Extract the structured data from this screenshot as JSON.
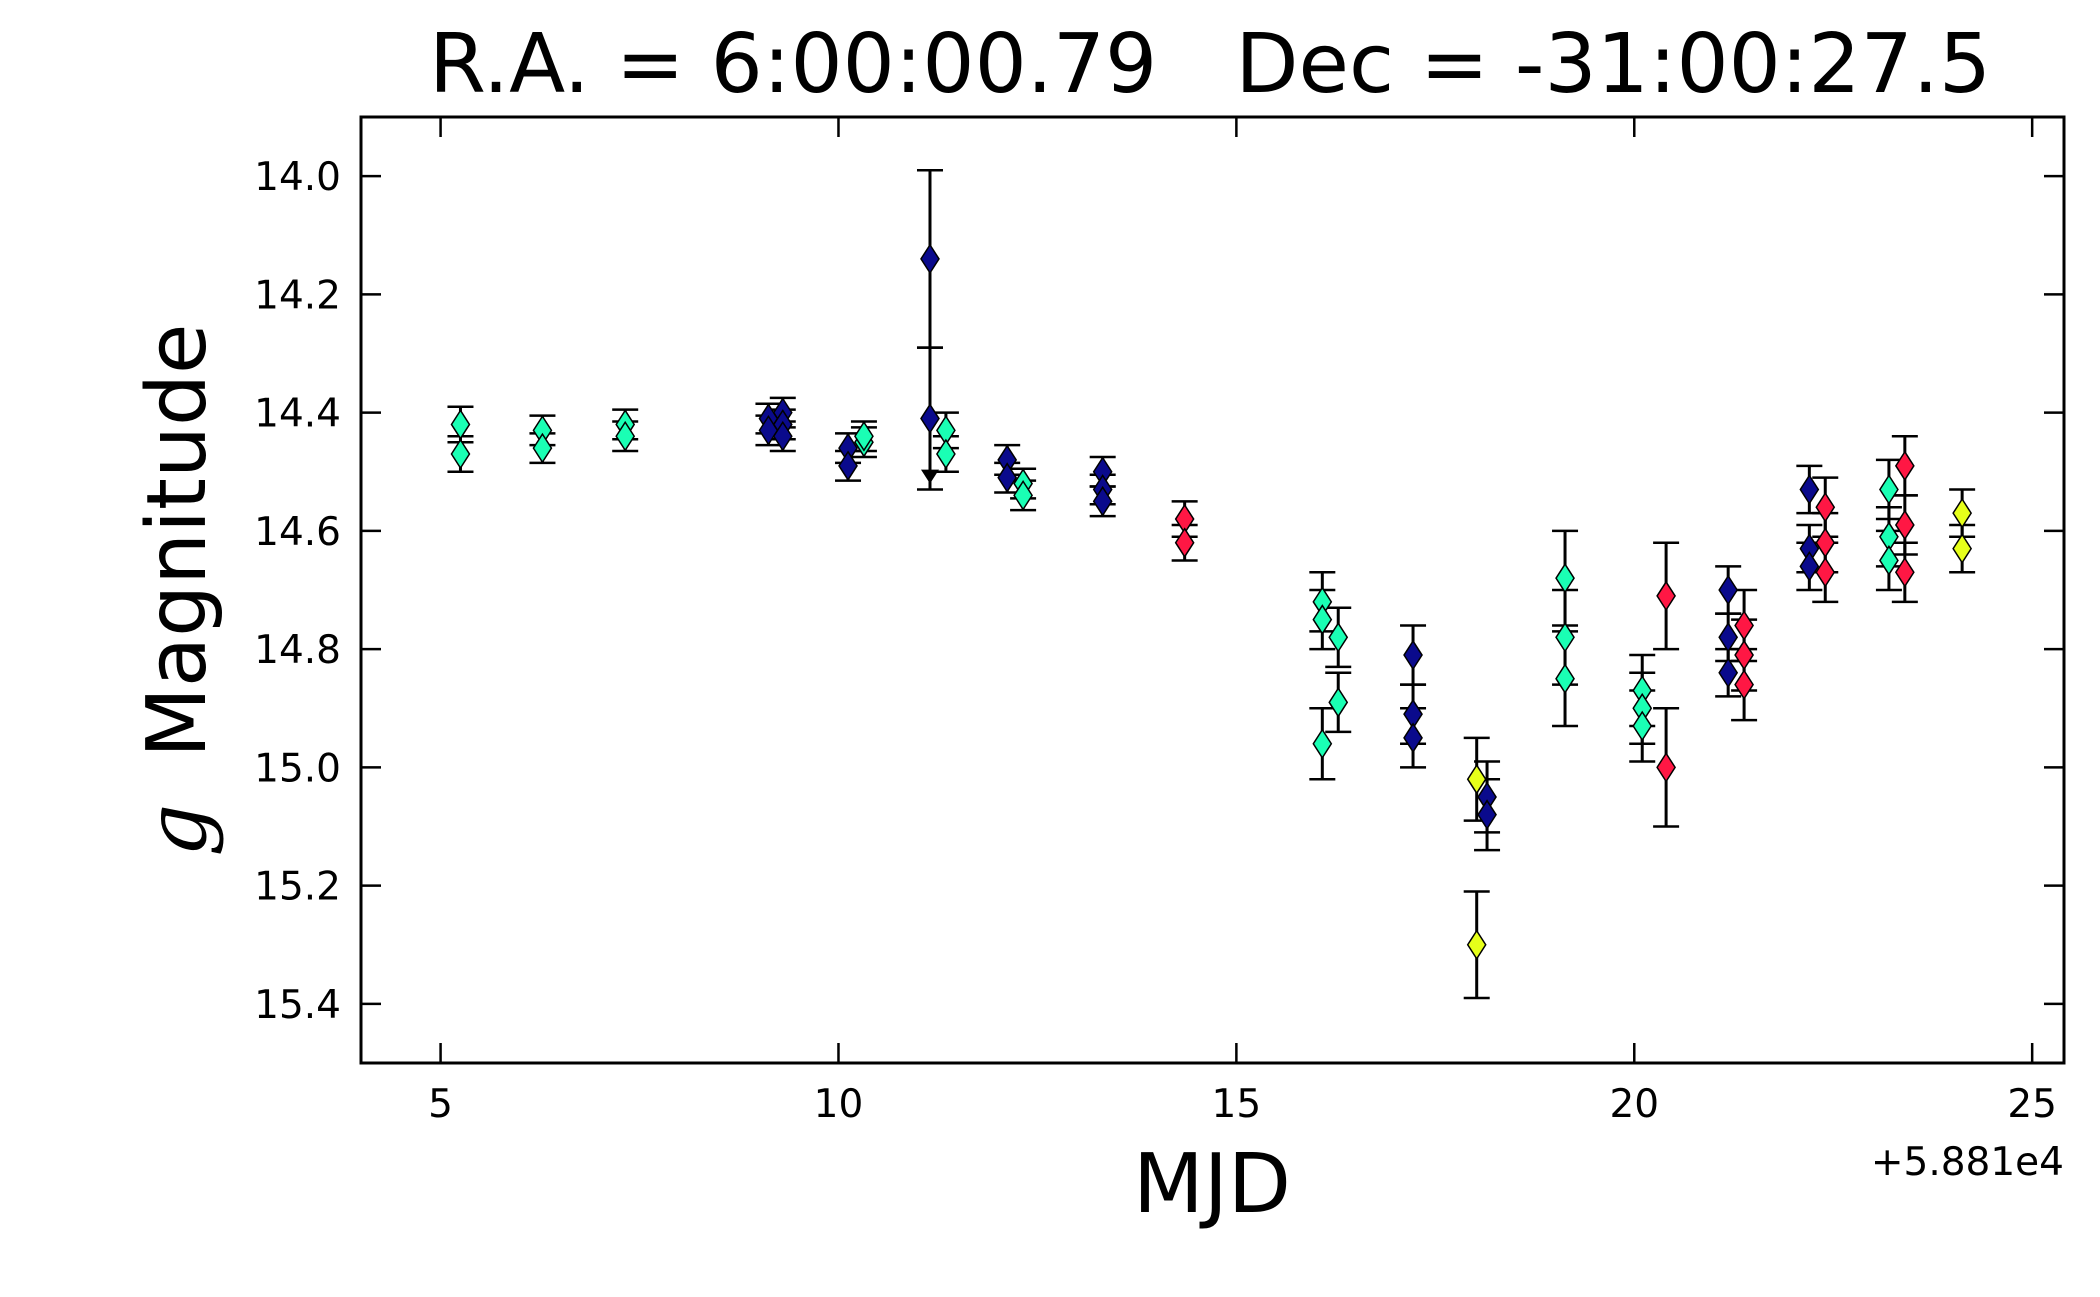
{
  "chart_data": {
    "type": "scatter",
    "title": "R.A. = 6:00:00.79   Dec = -31:00:27.5",
    "xlabel": "MJD",
    "ylabel_symbol": "g",
    "ylabel_text": "Magnitude",
    "x_offset_label": "+5.881e4",
    "xlim": [
      4.0,
      25.4
    ],
    "ylim": [
      15.5,
      13.9
    ],
    "y_inverted": true,
    "grid": false,
    "x_ticks": [
      5,
      10,
      15,
      20,
      25
    ],
    "y_ticks": [
      14.0,
      14.2,
      14.4,
      14.6,
      14.8,
      15.0,
      15.2,
      15.4
    ],
    "colors": {
      "cyan": "#1affb4",
      "navy": "#0a0a8c",
      "red": "#ff1744",
      "yellow": "#e6ff1a",
      "edge": "#000000"
    },
    "points": [
      {
        "x": 5.25,
        "y": 14.42,
        "err": 0.03,
        "color": "cyan"
      },
      {
        "x": 5.25,
        "y": 14.47,
        "err": 0.03,
        "color": "cyan"
      },
      {
        "x": 6.28,
        "y": 14.43,
        "err": 0.025,
        "color": "cyan"
      },
      {
        "x": 6.28,
        "y": 14.46,
        "err": 0.025,
        "color": "cyan"
      },
      {
        "x": 7.32,
        "y": 14.42,
        "err": 0.025,
        "color": "cyan"
      },
      {
        "x": 7.32,
        "y": 14.44,
        "err": 0.025,
        "color": "cyan"
      },
      {
        "x": 9.12,
        "y": 14.41,
        "err": 0.025,
        "color": "navy"
      },
      {
        "x": 9.12,
        "y": 14.43,
        "err": 0.025,
        "color": "navy"
      },
      {
        "x": 9.3,
        "y": 14.4,
        "err": 0.025,
        "color": "navy"
      },
      {
        "x": 9.3,
        "y": 14.42,
        "err": 0.025,
        "color": "navy"
      },
      {
        "x": 9.3,
        "y": 14.44,
        "err": 0.025,
        "color": "navy"
      },
      {
        "x": 10.12,
        "y": 14.46,
        "err": 0.025,
        "color": "navy"
      },
      {
        "x": 10.12,
        "y": 14.49,
        "err": 0.025,
        "color": "navy"
      },
      {
        "x": 10.32,
        "y": 14.45,
        "err": 0.025,
        "color": "cyan"
      },
      {
        "x": 10.32,
        "y": 14.44,
        "err": 0.025,
        "color": "cyan"
      },
      {
        "x": 11.15,
        "y": 14.14,
        "err": 0.15,
        "color": "navy"
      },
      {
        "x": 11.15,
        "y": 14.41,
        "err": 0.12,
        "color": "navy"
      },
      {
        "x": 11.35,
        "y": 14.43,
        "err": 0.03,
        "color": "cyan"
      },
      {
        "x": 11.35,
        "y": 14.47,
        "err": 0.03,
        "color": "cyan"
      },
      {
        "x": 12.12,
        "y": 14.48,
        "err": 0.025,
        "color": "navy"
      },
      {
        "x": 12.12,
        "y": 14.51,
        "err": 0.025,
        "color": "navy"
      },
      {
        "x": 12.32,
        "y": 14.52,
        "err": 0.025,
        "color": "cyan"
      },
      {
        "x": 12.32,
        "y": 14.54,
        "err": 0.025,
        "color": "cyan"
      },
      {
        "x": 13.32,
        "y": 14.5,
        "err": 0.025,
        "color": "navy"
      },
      {
        "x": 13.32,
        "y": 14.53,
        "err": 0.025,
        "color": "navy"
      },
      {
        "x": 13.32,
        "y": 14.55,
        "err": 0.025,
        "color": "navy"
      },
      {
        "x": 14.35,
        "y": 14.58,
        "err": 0.03,
        "color": "red"
      },
      {
        "x": 14.35,
        "y": 14.62,
        "err": 0.03,
        "color": "red"
      },
      {
        "x": 16.08,
        "y": 14.72,
        "err": 0.05,
        "color": "cyan"
      },
      {
        "x": 16.08,
        "y": 14.75,
        "err": 0.05,
        "color": "cyan"
      },
      {
        "x": 16.08,
        "y": 14.96,
        "err": 0.06,
        "color": "cyan"
      },
      {
        "x": 16.28,
        "y": 14.78,
        "err": 0.05,
        "color": "cyan"
      },
      {
        "x": 16.28,
        "y": 14.89,
        "err": 0.05,
        "color": "cyan"
      },
      {
        "x": 17.22,
        "y": 14.81,
        "err": 0.05,
        "color": "navy"
      },
      {
        "x": 17.22,
        "y": 14.91,
        "err": 0.05,
        "color": "navy"
      },
      {
        "x": 17.22,
        "y": 14.95,
        "err": 0.05,
        "color": "navy"
      },
      {
        "x": 18.02,
        "y": 15.02,
        "err": 0.07,
        "color": "yellow"
      },
      {
        "x": 18.02,
        "y": 15.3,
        "err": 0.09,
        "color": "yellow"
      },
      {
        "x": 18.15,
        "y": 15.05,
        "err": 0.06,
        "color": "navy"
      },
      {
        "x": 18.15,
        "y": 15.08,
        "err": 0.06,
        "color": "navy"
      },
      {
        "x": 19.13,
        "y": 14.68,
        "err": 0.08,
        "color": "cyan"
      },
      {
        "x": 19.13,
        "y": 14.78,
        "err": 0.08,
        "color": "cyan"
      },
      {
        "x": 19.13,
        "y": 14.85,
        "err": 0.08,
        "color": "cyan"
      },
      {
        "x": 20.1,
        "y": 14.87,
        "err": 0.06,
        "color": "cyan"
      },
      {
        "x": 20.1,
        "y": 14.9,
        "err": 0.06,
        "color": "cyan"
      },
      {
        "x": 20.1,
        "y": 14.93,
        "err": 0.06,
        "color": "cyan"
      },
      {
        "x": 20.4,
        "y": 14.71,
        "err": 0.09,
        "color": "red"
      },
      {
        "x": 20.4,
        "y": 15.0,
        "err": 0.1,
        "color": "red"
      },
      {
        "x": 21.18,
        "y": 14.7,
        "err": 0.04,
        "color": "navy"
      },
      {
        "x": 21.18,
        "y": 14.78,
        "err": 0.04,
        "color": "navy"
      },
      {
        "x": 21.18,
        "y": 14.84,
        "err": 0.04,
        "color": "navy"
      },
      {
        "x": 21.38,
        "y": 14.76,
        "err": 0.06,
        "color": "red"
      },
      {
        "x": 21.38,
        "y": 14.81,
        "err": 0.06,
        "color": "red"
      },
      {
        "x": 21.38,
        "y": 14.86,
        "err": 0.06,
        "color": "red"
      },
      {
        "x": 22.2,
        "y": 14.53,
        "err": 0.04,
        "color": "navy"
      },
      {
        "x": 22.2,
        "y": 14.63,
        "err": 0.04,
        "color": "navy"
      },
      {
        "x": 22.2,
        "y": 14.66,
        "err": 0.04,
        "color": "navy"
      },
      {
        "x": 22.4,
        "y": 14.56,
        "err": 0.05,
        "color": "red"
      },
      {
        "x": 22.4,
        "y": 14.62,
        "err": 0.05,
        "color": "red"
      },
      {
        "x": 22.4,
        "y": 14.67,
        "err": 0.05,
        "color": "red"
      },
      {
        "x": 23.2,
        "y": 14.53,
        "err": 0.05,
        "color": "cyan"
      },
      {
        "x": 23.2,
        "y": 14.61,
        "err": 0.05,
        "color": "cyan"
      },
      {
        "x": 23.2,
        "y": 14.65,
        "err": 0.05,
        "color": "cyan"
      },
      {
        "x": 23.4,
        "y": 14.49,
        "err": 0.05,
        "color": "red"
      },
      {
        "x": 23.4,
        "y": 14.59,
        "err": 0.05,
        "color": "red"
      },
      {
        "x": 23.4,
        "y": 14.67,
        "err": 0.05,
        "color": "red"
      },
      {
        "x": 24.12,
        "y": 14.57,
        "err": 0.04,
        "color": "yellow"
      },
      {
        "x": 24.12,
        "y": 14.63,
        "err": 0.04,
        "color": "yellow"
      }
    ],
    "upper_limit_arrow": {
      "x": 11.15,
      "y": 14.52
    }
  }
}
